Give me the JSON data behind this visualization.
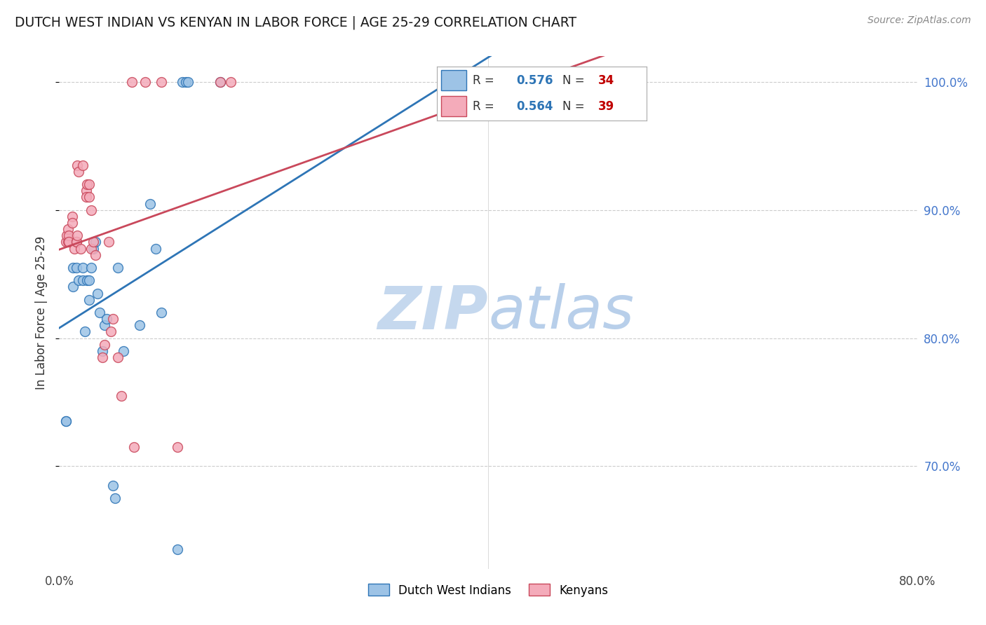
{
  "title": "DUTCH WEST INDIAN VS KENYAN IN LABOR FORCE | AGE 25-29 CORRELATION CHART",
  "source": "Source: ZipAtlas.com",
  "ylabel": "In Labor Force | Age 25-29",
  "xlim": [
    0.0,
    0.8
  ],
  "ylim": [
    0.62,
    1.02
  ],
  "ytick_positions": [
    0.7,
    0.8,
    0.9,
    1.0
  ],
  "yticklabels_right": [
    "70.0%",
    "80.0%",
    "90.0%",
    "100.0%"
  ],
  "blue_R": 0.576,
  "blue_N": 34,
  "pink_R": 0.564,
  "pink_N": 39,
  "blue_color": "#9DC3E6",
  "pink_color": "#F4ABBA",
  "blue_edge_color": "#2E75B6",
  "pink_edge_color": "#C9485B",
  "blue_line_color": "#2E75B6",
  "pink_line_color": "#C9485B",
  "legend_R_color": "#2E75B6",
  "legend_N_color": "#C00000",
  "watermark_zip": "ZIP",
  "watermark_atlas": "atlas",
  "blue_x": [
    0.006,
    0.006,
    0.013,
    0.013,
    0.016,
    0.018,
    0.022,
    0.022,
    0.024,
    0.026,
    0.028,
    0.028,
    0.03,
    0.032,
    0.034,
    0.036,
    0.038,
    0.04,
    0.042,
    0.044,
    0.05,
    0.052,
    0.055,
    0.06,
    0.075,
    0.085,
    0.09,
    0.095,
    0.11,
    0.115,
    0.118,
    0.12,
    0.15,
    0.46
  ],
  "blue_y": [
    0.735,
    0.735,
    0.855,
    0.84,
    0.855,
    0.845,
    0.855,
    0.845,
    0.805,
    0.845,
    0.83,
    0.845,
    0.855,
    0.87,
    0.875,
    0.835,
    0.82,
    0.79,
    0.81,
    0.815,
    0.685,
    0.675,
    0.855,
    0.79,
    0.81,
    0.905,
    0.87,
    0.82,
    0.635,
    1.0,
    1.0,
    1.0,
    1.0,
    1.0
  ],
  "pink_x": [
    0.006,
    0.007,
    0.008,
    0.008,
    0.009,
    0.009,
    0.012,
    0.012,
    0.014,
    0.016,
    0.016,
    0.017,
    0.017,
    0.018,
    0.02,
    0.022,
    0.025,
    0.025,
    0.026,
    0.028,
    0.028,
    0.03,
    0.03,
    0.032,
    0.034,
    0.04,
    0.042,
    0.046,
    0.048,
    0.05,
    0.055,
    0.058,
    0.068,
    0.07,
    0.08,
    0.095,
    0.11,
    0.15,
    0.16
  ],
  "pink_y": [
    0.875,
    0.88,
    0.885,
    0.875,
    0.88,
    0.875,
    0.895,
    0.89,
    0.87,
    0.875,
    0.875,
    0.88,
    0.935,
    0.93,
    0.87,
    0.935,
    0.915,
    0.91,
    0.92,
    0.92,
    0.91,
    0.9,
    0.87,
    0.875,
    0.865,
    0.785,
    0.795,
    0.875,
    0.805,
    0.815,
    0.785,
    0.755,
    1.0,
    0.715,
    1.0,
    1.0,
    0.715,
    1.0,
    1.0
  ]
}
